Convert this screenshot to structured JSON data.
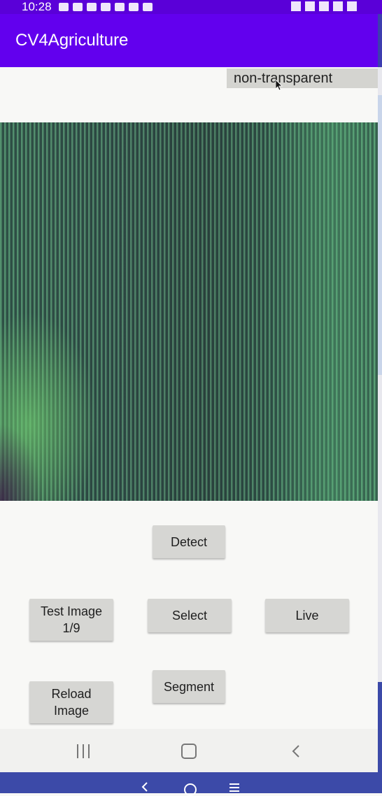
{
  "status_bar": {
    "time": "10:28"
  },
  "app_bar": {
    "title": "CV4Agriculture"
  },
  "overlay_toggle": {
    "label": "non-transparent"
  },
  "buttons": {
    "detect": "Detect",
    "test_image": "Test Image\n1/9",
    "select": "Select",
    "live": "Live",
    "reload_image": "Reload\nImage",
    "segment": "Segment"
  },
  "colors": {
    "status_bar": "#5a00d8",
    "app_bar": "#6200ee",
    "button_bg": "#d6d6d3",
    "bottom_strip": "#3c4aa8"
  },
  "icons": {
    "nav_recents": "recents-icon",
    "nav_home": "home-icon",
    "nav_back": "back-icon"
  }
}
